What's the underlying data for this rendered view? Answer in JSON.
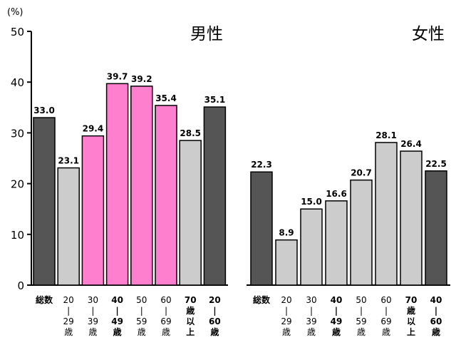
{
  "chart_data": {
    "type": "bar",
    "ylabel": "(%)",
    "ylim": [
      0,
      50
    ],
    "yticks": [
      "0",
      "10",
      "20",
      "30",
      "40",
      "50"
    ],
    "grid": false,
    "legend": "none",
    "colors": {
      "dark": "#555555",
      "light": "#cccccc",
      "highlight": "#ff7fcf",
      "outline": "#000000"
    },
    "panels": [
      {
        "title": "男性",
        "categories": [
          {
            "lines": [
              "総数"
            ],
            "bold": true
          },
          {
            "lines": [
              "20",
              "|",
              "29",
              "歳"
            ],
            "bold": false
          },
          {
            "lines": [
              "30",
              "|",
              "39",
              "歳"
            ],
            "bold": false
          },
          {
            "lines": [
              "40",
              "|",
              "49",
              "歳"
            ],
            "bold": true
          },
          {
            "lines": [
              "50",
              "|",
              "59",
              "歳"
            ],
            "bold": false
          },
          {
            "lines": [
              "60",
              "|",
              "69",
              "歳"
            ],
            "bold": false
          },
          {
            "lines": [
              "70",
              "歳",
              "以",
              "上"
            ],
            "bold": true
          },
          {
            "lines": [
              "20",
              "|",
              "60",
              "歳"
            ],
            "bold": true
          }
        ],
        "values": [
          33.0,
          23.1,
          29.4,
          39.7,
          39.2,
          35.4,
          28.5,
          35.1
        ],
        "value_labels": [
          "33.0",
          "23.1",
          "29.4",
          "39.7",
          "39.2",
          "35.4",
          "28.5",
          "35.1"
        ],
        "fills": [
          "dark",
          "light",
          "highlight",
          "highlight",
          "highlight",
          "highlight",
          "light",
          "dark"
        ]
      },
      {
        "title": "女性",
        "categories": [
          {
            "lines": [
              "総数"
            ],
            "bold": true
          },
          {
            "lines": [
              "20",
              "|",
              "29",
              "歳"
            ],
            "bold": false
          },
          {
            "lines": [
              "30",
              "|",
              "39",
              "歳"
            ],
            "bold": false
          },
          {
            "lines": [
              "40",
              "|",
              "49",
              "歳"
            ],
            "bold": true
          },
          {
            "lines": [
              "50",
              "|",
              "59",
              "歳"
            ],
            "bold": false
          },
          {
            "lines": [
              "60",
              "|",
              "69",
              "歳"
            ],
            "bold": false
          },
          {
            "lines": [
              "70",
              "歳",
              "以",
              "上"
            ],
            "bold": true
          },
          {
            "lines": [
              "40",
              "|",
              "60",
              "歳"
            ],
            "bold": true
          }
        ],
        "values": [
          22.3,
          8.9,
          15.0,
          16.6,
          20.7,
          28.1,
          26.4,
          22.5
        ],
        "value_labels": [
          "22.3",
          "8.9",
          "15.0",
          "16.6",
          "20.7",
          "28.1",
          "26.4",
          "22.5"
        ],
        "fills": [
          "dark",
          "light",
          "light",
          "light",
          "light",
          "light",
          "light",
          "dark"
        ]
      }
    ]
  }
}
